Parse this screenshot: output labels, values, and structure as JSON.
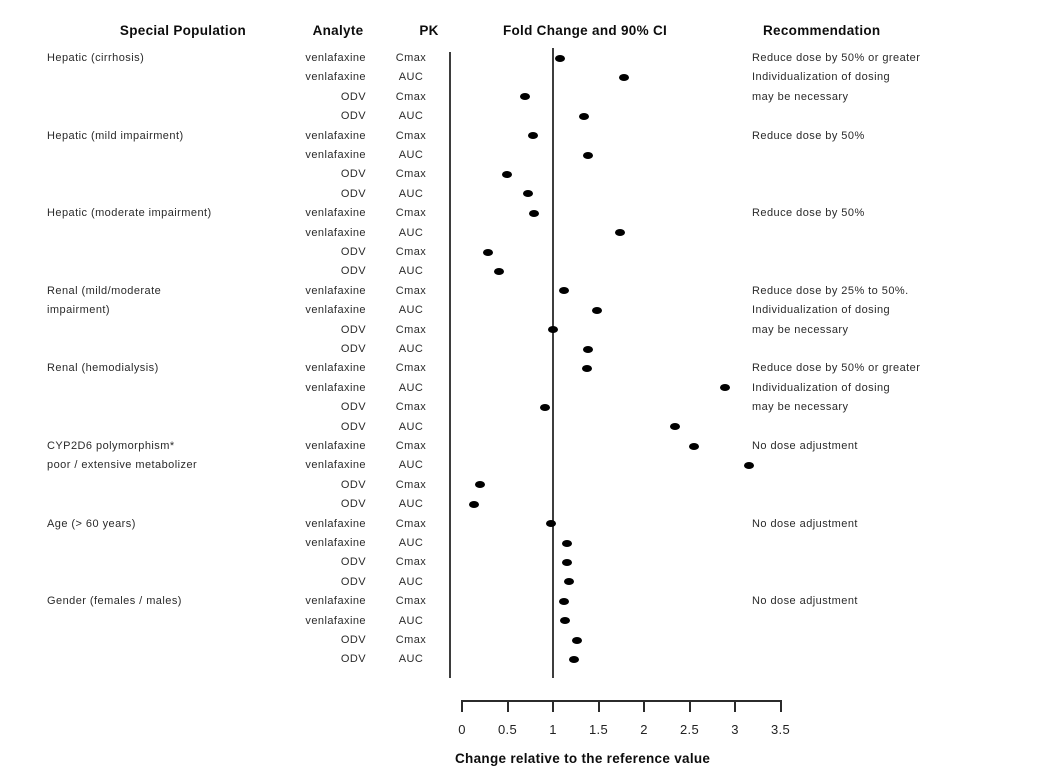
{
  "headers": {
    "special_population": "Special Population",
    "analyte": "Analyte",
    "pk": "PK",
    "fold_change": "Fold Change and 90% CI",
    "recommendation": "Recommendation"
  },
  "chart_data": {
    "type": "scatter",
    "title": "Fold Change and 90% CI",
    "xlabel": "Change relative to the reference value",
    "xlim": [
      0,
      3.5
    ],
    "xticks": [
      "0",
      "0.5",
      "1",
      "1.5",
      "2",
      "2.5",
      "3",
      "3.5"
    ],
    "reference_line_x": 1,
    "grid": false,
    "marker_color": "#000000",
    "groups": [
      {
        "population": [
          "Hepatic (cirrhosis)"
        ],
        "recommendation": [
          "Reduce dose by 50% or greater",
          "Individualization of dosing",
          "may be necessary"
        ],
        "rows": [
          {
            "analyte": "venlafaxine",
            "pk": "Cmax",
            "fold_change": 1.08
          },
          {
            "analyte": "venlafaxine",
            "pk": "AUC",
            "fold_change": 1.78
          },
          {
            "analyte": "ODV",
            "pk": "Cmax",
            "fold_change": 0.69
          },
          {
            "analyte": "ODV",
            "pk": "AUC",
            "fold_change": 1.34
          }
        ]
      },
      {
        "population": [
          "Hepatic (mild impairment)"
        ],
        "recommendation": [
          "Reduce dose by 50%"
        ],
        "rows": [
          {
            "analyte": "venlafaxine",
            "pk": "Cmax",
            "fold_change": 0.78
          },
          {
            "analyte": "venlafaxine",
            "pk": "AUC",
            "fold_change": 1.38
          },
          {
            "analyte": "ODV",
            "pk": "Cmax",
            "fold_change": 0.49
          },
          {
            "analyte": "ODV",
            "pk": "AUC",
            "fold_change": 0.73
          }
        ]
      },
      {
        "population": [
          "Hepatic (moderate impairment)"
        ],
        "recommendation": [
          "Reduce dose by 50%"
        ],
        "rows": [
          {
            "analyte": "venlafaxine",
            "pk": "Cmax",
            "fold_change": 0.79
          },
          {
            "analyte": "venlafaxine",
            "pk": "AUC",
            "fold_change": 1.74
          },
          {
            "analyte": "ODV",
            "pk": "Cmax",
            "fold_change": 0.29
          },
          {
            "analyte": "ODV",
            "pk": "AUC",
            "fold_change": 0.41
          }
        ]
      },
      {
        "population": [
          "Renal (mild/moderate",
          "impairment)"
        ],
        "recommendation": [
          "Reduce dose by 25% to 50%.",
          "Individualization of dosing",
          "may be necessary"
        ],
        "rows": [
          {
            "analyte": "venlafaxine",
            "pk": "Cmax",
            "fold_change": 1.12
          },
          {
            "analyte": "venlafaxine",
            "pk": "AUC",
            "fold_change": 1.48
          },
          {
            "analyte": "ODV",
            "pk": "Cmax",
            "fold_change": 1.0
          },
          {
            "analyte": "ODV",
            "pk": "AUC",
            "fold_change": 1.38
          }
        ]
      },
      {
        "population": [
          "Renal (hemodialysis)"
        ],
        "recommendation": [
          "Reduce dose by 50% or greater",
          "Individualization of dosing",
          "may be necessary"
        ],
        "rows": [
          {
            "analyte": "venlafaxine",
            "pk": "Cmax",
            "fold_change": 1.37
          },
          {
            "analyte": "venlafaxine",
            "pk": "AUC",
            "fold_change": 2.89
          },
          {
            "analyte": "ODV",
            "pk": "Cmax",
            "fold_change": 0.91
          },
          {
            "analyte": "ODV",
            "pk": "AUC",
            "fold_change": 2.34
          }
        ]
      },
      {
        "population": [
          "CYP2D6 polymorphism*",
          "poor / extensive metabolizer"
        ],
        "recommendation": [
          "No dose adjustment"
        ],
        "rows": [
          {
            "analyte": "venlafaxine",
            "pk": "Cmax",
            "fold_change": 2.55
          },
          {
            "analyte": "venlafaxine",
            "pk": "AUC",
            "fold_change": 3.15
          },
          {
            "analyte": "ODV",
            "pk": "Cmax",
            "fold_change": 0.2
          },
          {
            "analyte": "ODV",
            "pk": "AUC",
            "fold_change": 0.13
          }
        ]
      },
      {
        "population": [
          "Age (> 60 years)"
        ],
        "recommendation": [
          "No dose adjustment"
        ],
        "rows": [
          {
            "analyte": "venlafaxine",
            "pk": "Cmax",
            "fold_change": 0.98
          },
          {
            "analyte": "venlafaxine",
            "pk": "AUC",
            "fold_change": 1.15
          },
          {
            "analyte": "ODV",
            "pk": "Cmax",
            "fold_change": 1.15
          },
          {
            "analyte": "ODV",
            "pk": "AUC",
            "fold_change": 1.18
          }
        ]
      },
      {
        "population": [
          "Gender (females / males)"
        ],
        "recommendation": [
          "No dose adjustment"
        ],
        "rows": [
          {
            "analyte": "venlafaxine",
            "pk": "Cmax",
            "fold_change": 1.12
          },
          {
            "analyte": "venlafaxine",
            "pk": "AUC",
            "fold_change": 1.13
          },
          {
            "analyte": "ODV",
            "pk": "Cmax",
            "fold_change": 1.26
          },
          {
            "analyte": "ODV",
            "pk": "AUC",
            "fold_change": 1.23
          }
        ]
      }
    ]
  }
}
